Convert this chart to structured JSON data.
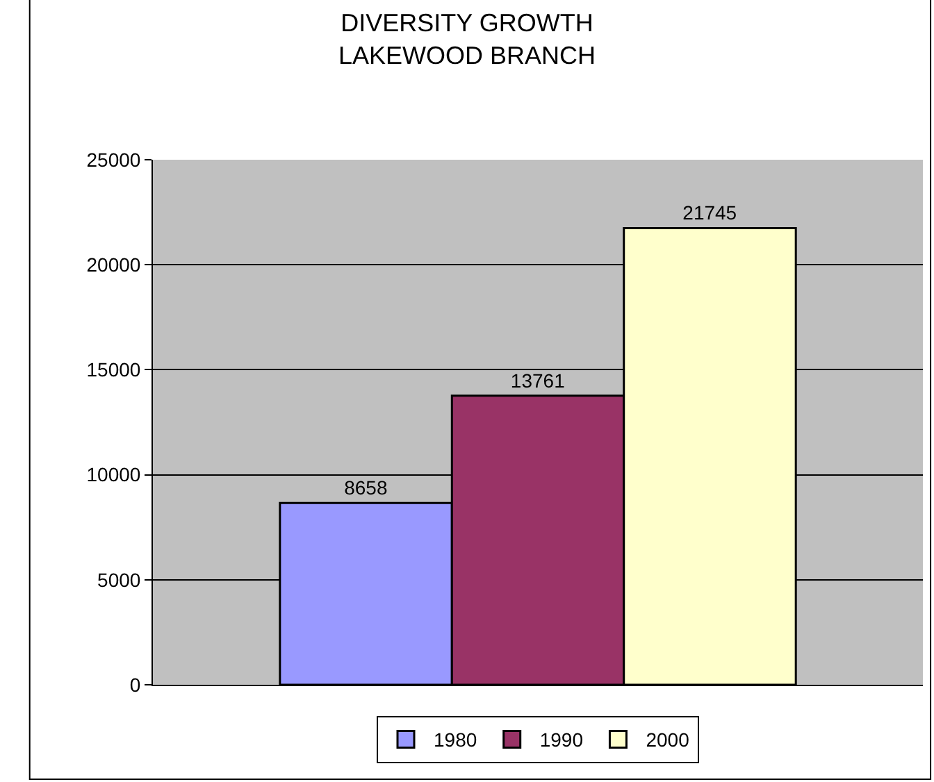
{
  "chart_data": {
    "type": "bar",
    "title": "DIVERSITY GROWTH\nLAKEWOOD BRANCH",
    "categories": [
      null
    ],
    "series": [
      {
        "name": "1980",
        "color": "#9999ff",
        "values": [
          8658
        ]
      },
      {
        "name": "1990",
        "color": "#993366",
        "values": [
          13761
        ]
      },
      {
        "name": "2000",
        "color": "#ffffcc",
        "values": [
          21745
        ]
      }
    ],
    "ylim": [
      0,
      25000
    ],
    "yticks": [
      0,
      5000,
      10000,
      15000,
      20000,
      25000
    ],
    "grid": "y",
    "legend": "bottom",
    "data_labels": true,
    "tick_labels": "y"
  }
}
